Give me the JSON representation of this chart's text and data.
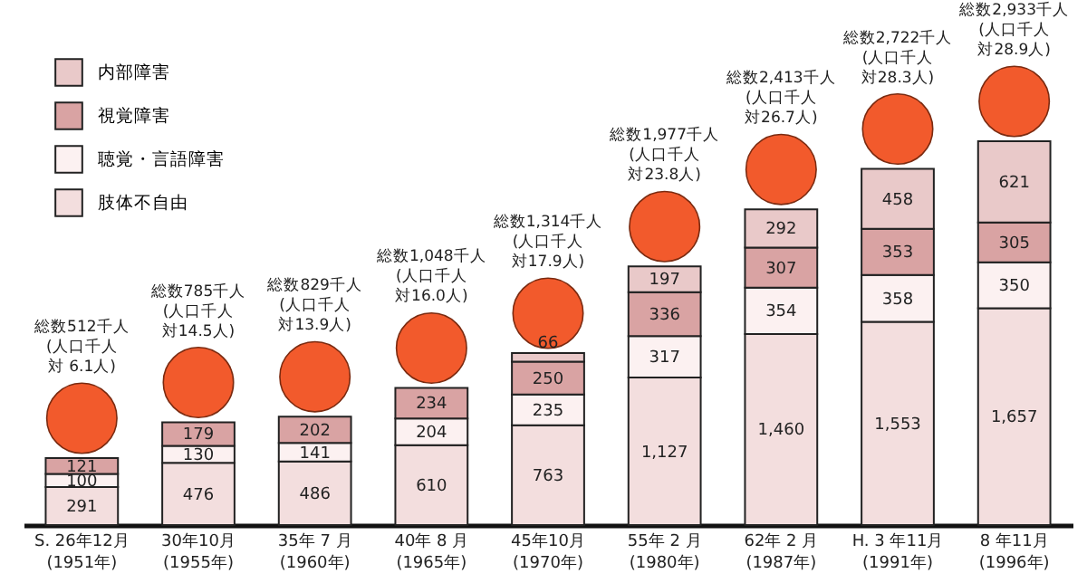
{
  "chart_data": {
    "type": "bar",
    "stacked": true,
    "legend": "top left",
    "grid": false,
    "categories": [
      "S. 26年12月\n(1951年)",
      "30年10月\n(1955年)",
      "35年 7 月\n(1960年)",
      "40年 8 月\n(1965年)",
      "45年10月\n(1970年)",
      "55年 2 月\n(1980年)",
      "62年 2 月\n(1987年)",
      "H. 3 年11月\n(1991年)",
      "8 年11月\n(1996年)"
    ],
    "series": [
      {
        "name": "肢体不自由",
        "color": "#f3dede",
        "values": [
          291,
          476,
          486,
          610,
          763,
          1127,
          1460,
          1553,
          1657
        ],
        "value_labels": [
          "291",
          "476",
          "486",
          "610",
          "763",
          "1,127",
          "1,460",
          "1,553",
          "1,657"
        ]
      },
      {
        "name": "聴覚・言語障害",
        "color": "#fcf1f1",
        "values": [
          100,
          130,
          141,
          204,
          235,
          317,
          354,
          358,
          350
        ],
        "value_labels": [
          "100",
          "130",
          "141",
          "204",
          "235",
          "317",
          "354",
          "358",
          "350"
        ]
      },
      {
        "name": "視覚障害",
        "color": "#d9a3a3",
        "values": [
          121,
          179,
          202,
          234,
          250,
          336,
          307,
          353,
          305
        ],
        "value_labels": [
          "121",
          "179",
          "202",
          "234",
          "250",
          "336",
          "307",
          "353",
          "305"
        ]
      },
      {
        "name": "内部障害",
        "color": "#e9c9c9",
        "values": [
          null,
          null,
          null,
          null,
          66,
          197,
          292,
          458,
          621
        ],
        "value_labels": [
          null,
          null,
          null,
          null,
          "66",
          "197",
          "292",
          "458",
          "621"
        ]
      }
    ],
    "annotations": [
      "総数512千人",
      "(人口千人",
      "対 6.1人)",
      "総数785千人",
      "(人口千人",
      "対14.5人)",
      "総数829千人",
      "(人口千人",
      "対13.9人)",
      "総数1,048千人",
      "(人口千人",
      "対16.0人)",
      "総数1,314千人",
      "(人口千人",
      "対17.9人)",
      "総数1,977千人",
      "(人口千人",
      "対23.8人)",
      "総数2,413千人",
      "(人口千人",
      "対26.7人)",
      "総数2,722千人",
      "(人口千人",
      "対28.3人)",
      "総数2,933千人",
      "(人口千人",
      "対28.9人)"
    ]
  }
}
